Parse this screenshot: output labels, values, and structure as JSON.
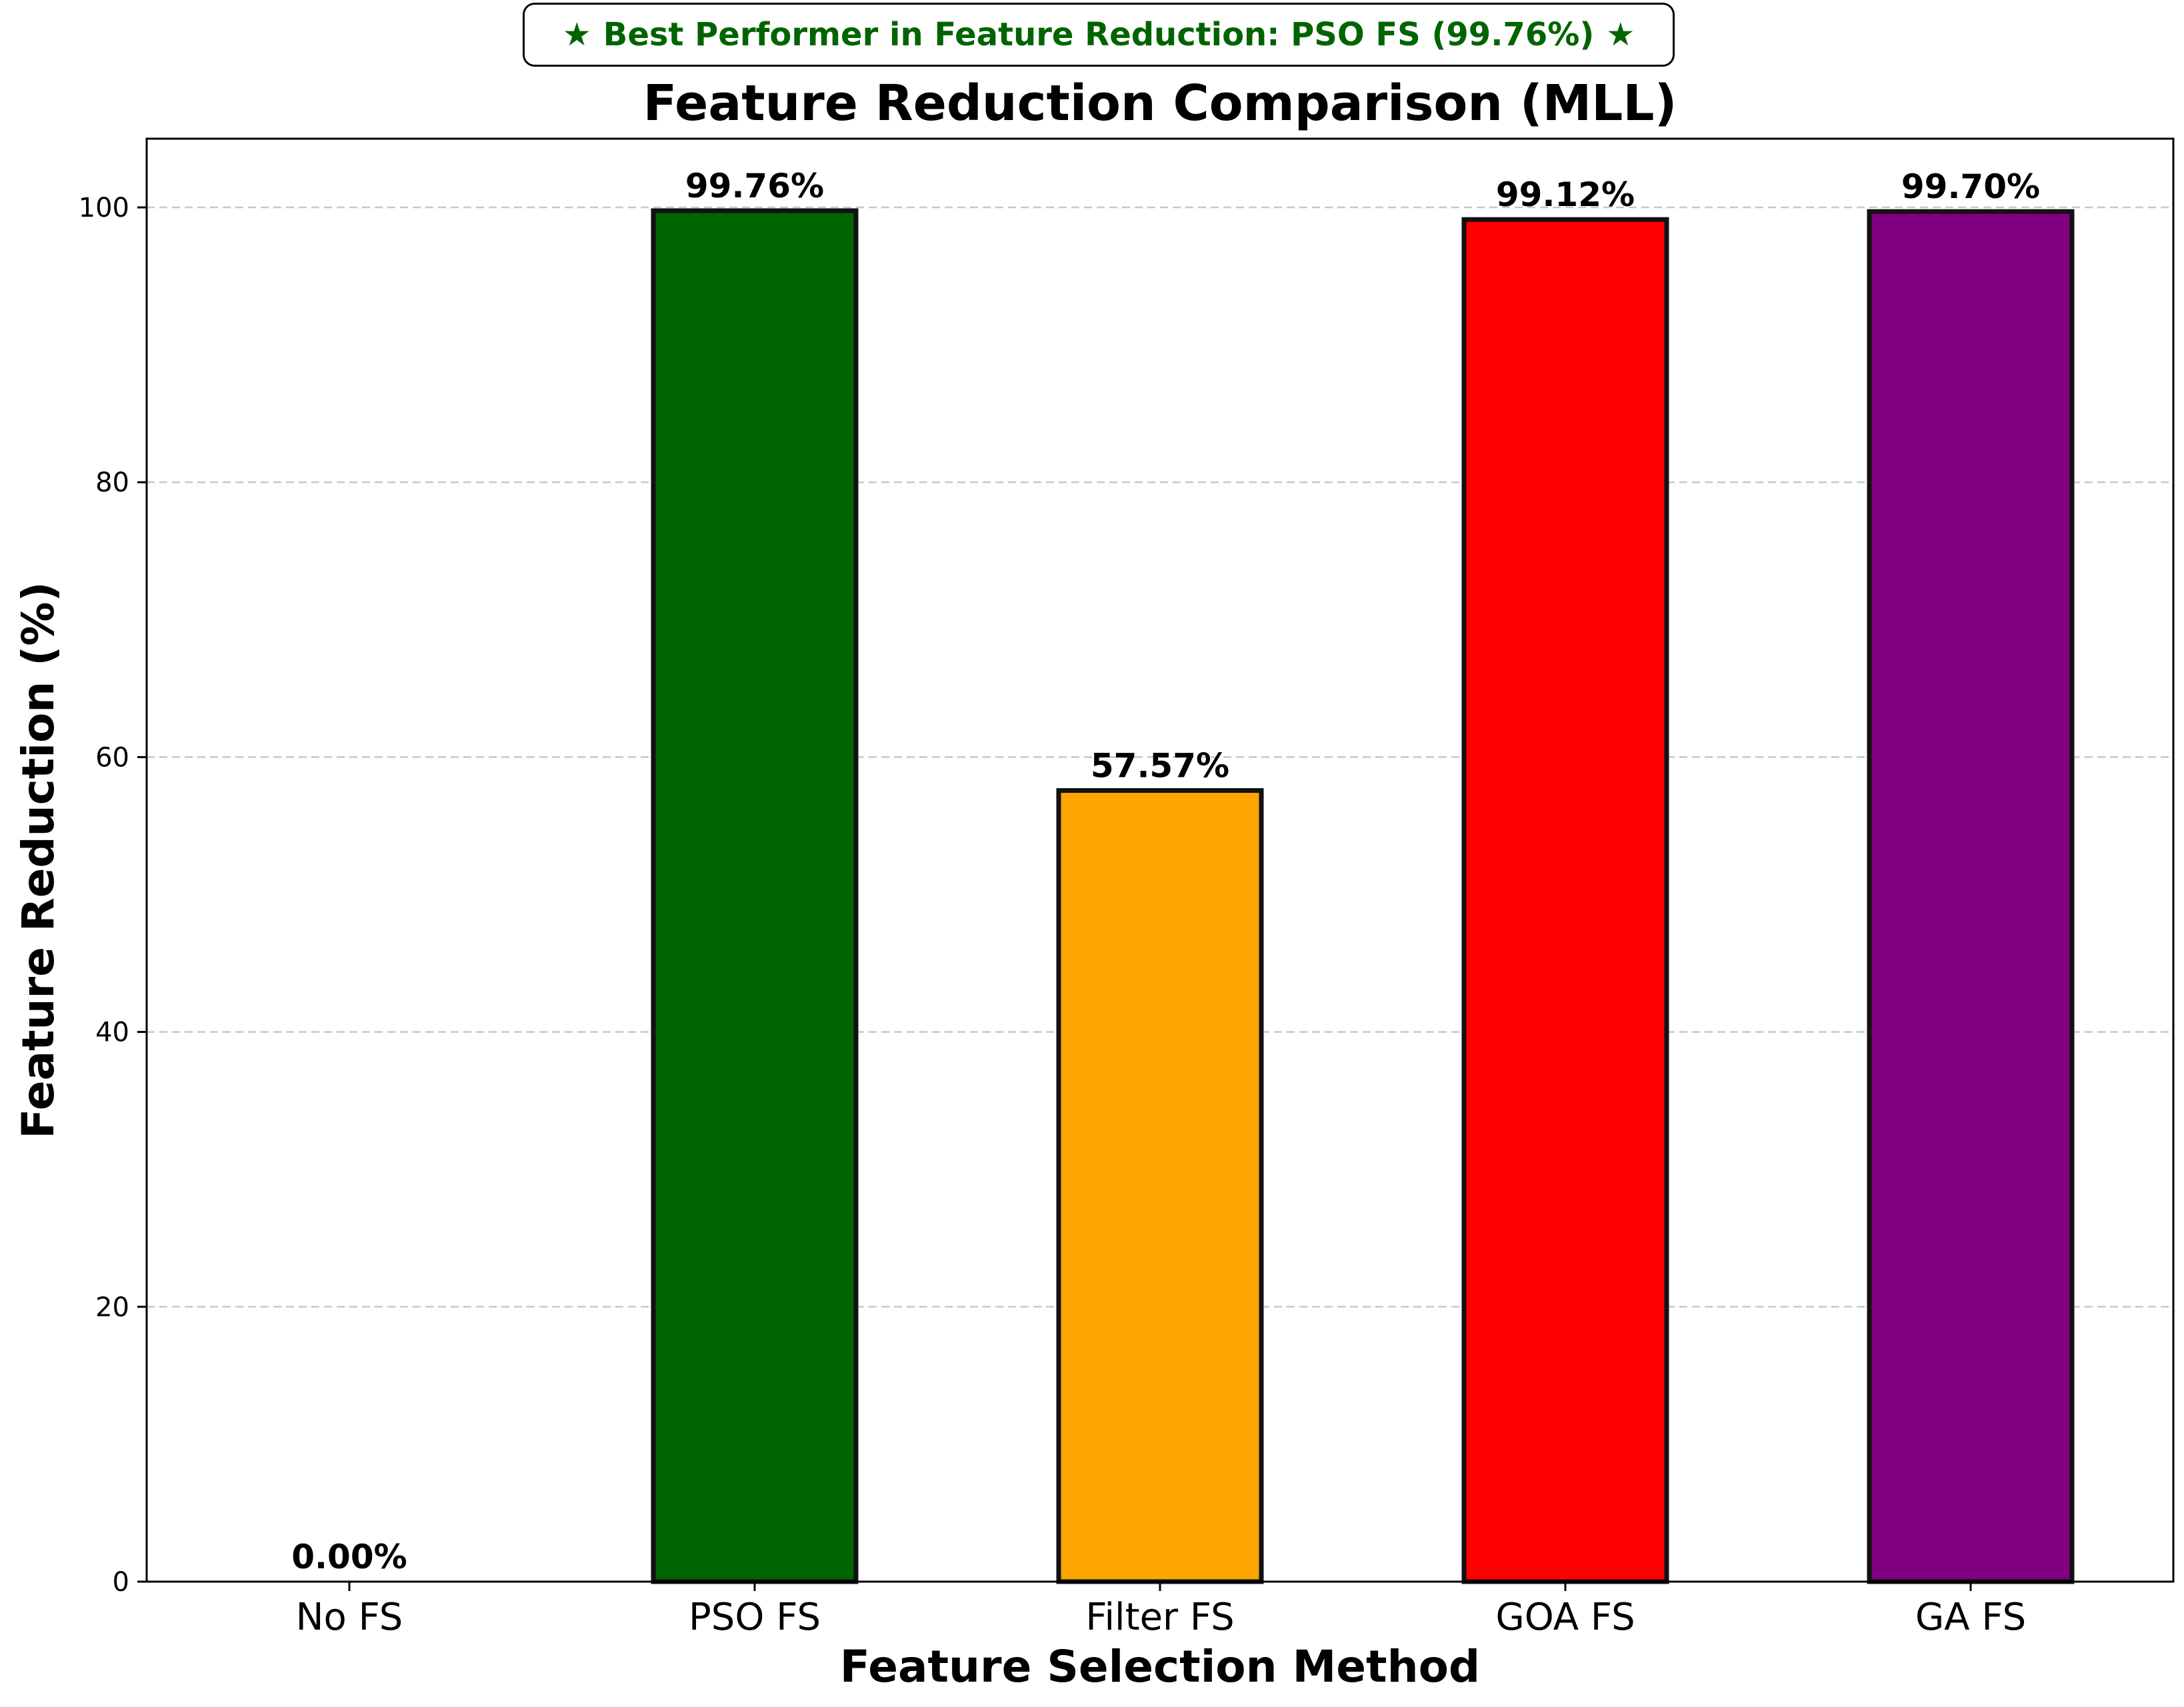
{
  "banner": {
    "star_left": "★",
    "text": "Best Performer in Feature Reduction: PSO FS (99.76%)",
    "star_right": "★",
    "color": "#006400"
  },
  "chart_data": {
    "type": "bar",
    "title": "Feature Reduction Comparison (MLL)",
    "xlabel": "Feature Selection Method",
    "ylabel": "Feature Reduction (%)",
    "categories": [
      "No FS",
      "PSO FS",
      "Filter FS",
      "GOA FS",
      "GA FS"
    ],
    "values": [
      0.0,
      99.76,
      57.57,
      99.12,
      99.7
    ],
    "value_labels": [
      "0.00%",
      "99.76%",
      "57.57%",
      "99.12%",
      "99.70%"
    ],
    "colors": [
      "#1f3f7f",
      "#006400",
      "#ffa500",
      "#ff0000",
      "#800080"
    ],
    "ylim": [
      0,
      105
    ],
    "yticks": [
      0,
      20,
      40,
      60,
      80,
      100
    ],
    "grid": "horizontal-dashed",
    "legend": "none"
  }
}
